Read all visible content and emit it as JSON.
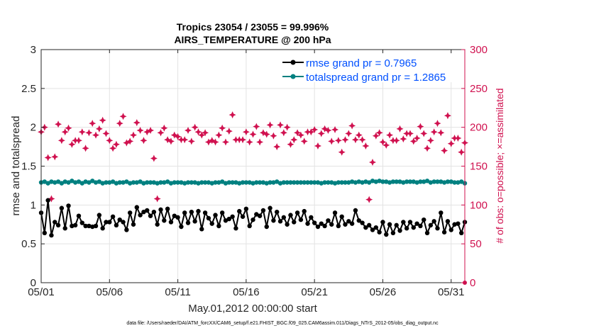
{
  "chart_data": {
    "type": "line",
    "title": "Tropics 23054 / 23055 = 99.996%",
    "subtitle": "AIRS_TEMPERATURE @ 200 hPa",
    "xlabel": "May.01,2012 00:00:00 start",
    "ylabel": "rmse and totalspread",
    "ylabel_right": "# of obs: o=possible; ×=assimilated",
    "x_tick_labels": [
      "05/01",
      "05/06",
      "05/11",
      "05/16",
      "05/21",
      "05/26",
      "05/31"
    ],
    "x_ticks": [
      0,
      5,
      10,
      15,
      20,
      25,
      30
    ],
    "xlim": [
      0,
      31
    ],
    "ylim": [
      0,
      3
    ],
    "y_ticks": [
      0,
      0.5,
      1,
      1.5,
      2,
      2.5,
      3
    ],
    "y_tick_labels": [
      "0",
      "0.5",
      "1",
      "1.5",
      "2",
      "2.5",
      "3"
    ],
    "ylim_right": [
      0,
      300
    ],
    "y_ticks_right": [
      0,
      50,
      100,
      150,
      200,
      250,
      300
    ],
    "y_tick_labels_right": [
      "0",
      "50",
      "100",
      "150",
      "200",
      "250",
      "300"
    ],
    "grid": true,
    "legend_position": "top-right",
    "series": [
      {
        "name": "rmse grand pr = 0.7965",
        "axis": "left",
        "color": "#000000",
        "x": [
          0.0,
          0.25,
          0.5,
          0.75,
          1.0,
          1.25,
          1.5,
          1.75,
          2.0,
          2.25,
          2.5,
          2.75,
          3.0,
          3.25,
          3.5,
          3.75,
          4.0,
          4.25,
          4.5,
          4.75,
          5.0,
          5.25,
          5.5,
          5.75,
          6.0,
          6.25,
          6.5,
          6.75,
          7.0,
          7.25,
          7.5,
          7.75,
          8.0,
          8.25,
          8.5,
          8.75,
          9.0,
          9.25,
          9.5,
          9.75,
          10.0,
          10.25,
          10.5,
          10.75,
          11.0,
          11.25,
          11.5,
          11.75,
          12.0,
          12.25,
          12.5,
          12.75,
          13.0,
          13.25,
          13.5,
          13.75,
          14.0,
          14.25,
          14.5,
          14.75,
          15.0,
          15.25,
          15.5,
          15.75,
          16.0,
          16.25,
          16.5,
          16.75,
          17.0,
          17.25,
          17.5,
          17.75,
          18.0,
          18.25,
          18.5,
          18.75,
          19.0,
          19.25,
          19.5,
          19.75,
          20.0,
          20.25,
          20.5,
          20.75,
          21.0,
          21.25,
          21.5,
          21.75,
          22.0,
          22.25,
          22.5,
          22.75,
          23.0,
          23.25,
          23.5,
          23.75,
          24.0,
          24.25,
          24.5,
          24.75,
          25.0,
          25.25,
          25.5,
          25.75,
          26.0,
          26.25,
          26.5,
          26.75,
          27.0,
          27.25,
          27.5,
          27.75,
          28.0,
          28.25,
          28.5,
          28.75,
          29.0,
          29.25,
          29.5,
          29.75,
          30.0,
          30.25,
          30.5,
          30.75,
          31.0
        ],
        "values": [
          0.9,
          0.64,
          1.06,
          0.61,
          0.78,
          0.74,
          0.96,
          0.7,
          0.99,
          0.73,
          0.74,
          0.86,
          0.77,
          0.73,
          0.73,
          0.72,
          0.73,
          0.87,
          0.7,
          0.78,
          0.78,
          0.85,
          0.74,
          0.81,
          0.78,
          0.68,
          0.9,
          0.75,
          0.97,
          0.87,
          0.91,
          0.93,
          0.86,
          0.91,
          0.75,
          0.94,
          0.8,
          0.95,
          0.78,
          0.86,
          0.84,
          0.72,
          0.9,
          0.77,
          0.91,
          0.79,
          0.92,
          0.69,
          0.9,
          0.83,
          0.76,
          0.87,
          0.73,
          0.9,
          0.8,
          0.82,
          0.85,
          0.7,
          0.92,
          0.85,
          0.95,
          0.73,
          0.81,
          0.88,
          0.86,
          0.93,
          0.72,
          0.96,
          0.8,
          0.91,
          0.79,
          0.84,
          0.75,
          0.87,
          0.78,
          0.9,
          0.81,
          0.92,
          0.76,
          0.84,
          0.77,
          0.72,
          0.76,
          0.73,
          0.8,
          0.75,
          0.9,
          0.73,
          0.85,
          0.75,
          0.79,
          0.76,
          0.93,
          0.8,
          0.77,
          0.71,
          0.74,
          0.68,
          0.71,
          0.65,
          0.78,
          0.62,
          0.75,
          0.64,
          0.74,
          0.67,
          0.78,
          0.7,
          0.78,
          0.71,
          0.76,
          0.73,
          0.81,
          0.64,
          0.74,
          0.79,
          0.7,
          0.9,
          0.65,
          0.79,
          0.68,
          0.75,
          0.76,
          0.64,
          0.78
        ]
      },
      {
        "name": "totalspread grand pr = 1.2865",
        "axis": "left",
        "color": "#008080",
        "x": [
          0.0,
          0.25,
          0.5,
          0.75,
          1.0,
          1.25,
          1.5,
          1.75,
          2.0,
          2.25,
          2.5,
          2.75,
          3.0,
          3.25,
          3.5,
          3.75,
          4.0,
          4.25,
          4.5,
          4.75,
          5.0,
          5.25,
          5.5,
          5.75,
          6.0,
          6.25,
          6.5,
          6.75,
          7.0,
          7.25,
          7.5,
          7.75,
          8.0,
          8.25,
          8.5,
          8.75,
          9.0,
          9.25,
          9.5,
          9.75,
          10.0,
          10.25,
          10.5,
          10.75,
          11.0,
          11.25,
          11.5,
          11.75,
          12.0,
          12.25,
          12.5,
          12.75,
          13.0,
          13.25,
          13.5,
          13.75,
          14.0,
          14.25,
          14.5,
          14.75,
          15.0,
          15.25,
          15.5,
          15.75,
          16.0,
          16.25,
          16.5,
          16.75,
          17.0,
          17.25,
          17.5,
          17.75,
          18.0,
          18.25,
          18.5,
          18.75,
          19.0,
          19.25,
          19.5,
          19.75,
          20.0,
          20.25,
          20.5,
          20.75,
          21.0,
          21.25,
          21.5,
          21.75,
          22.0,
          22.25,
          22.5,
          22.75,
          23.0,
          23.25,
          23.5,
          23.75,
          24.0,
          24.25,
          24.5,
          24.75,
          25.0,
          25.25,
          25.5,
          25.75,
          26.0,
          26.25,
          26.5,
          26.75,
          27.0,
          27.25,
          27.5,
          27.75,
          28.0,
          28.25,
          28.5,
          28.75,
          29.0,
          29.25,
          29.5,
          29.75,
          30.0,
          30.25,
          30.5,
          30.75,
          31.0
        ],
        "values": [
          1.29,
          1.3,
          1.28,
          1.3,
          1.29,
          1.3,
          1.28,
          1.3,
          1.29,
          1.31,
          1.29,
          1.3,
          1.28,
          1.3,
          1.29,
          1.31,
          1.29,
          1.3,
          1.28,
          1.29,
          1.29,
          1.3,
          1.28,
          1.29,
          1.29,
          1.3,
          1.28,
          1.29,
          1.29,
          1.3,
          1.28,
          1.29,
          1.29,
          1.29,
          1.28,
          1.29,
          1.29,
          1.3,
          1.28,
          1.29,
          1.29,
          1.29,
          1.28,
          1.29,
          1.29,
          1.29,
          1.28,
          1.29,
          1.29,
          1.29,
          1.28,
          1.29,
          1.29,
          1.3,
          1.28,
          1.29,
          1.29,
          1.29,
          1.28,
          1.29,
          1.29,
          1.29,
          1.28,
          1.29,
          1.29,
          1.29,
          1.28,
          1.29,
          1.29,
          1.3,
          1.28,
          1.29,
          1.29,
          1.29,
          1.29,
          1.29,
          1.29,
          1.29,
          1.29,
          1.29,
          1.29,
          1.29,
          1.28,
          1.29,
          1.29,
          1.29,
          1.28,
          1.29,
          1.29,
          1.29,
          1.29,
          1.3,
          1.29,
          1.3,
          1.29,
          1.3,
          1.29,
          1.31,
          1.3,
          1.31,
          1.3,
          1.3,
          1.29,
          1.3,
          1.3,
          1.3,
          1.29,
          1.3,
          1.3,
          1.3,
          1.29,
          1.3,
          1.3,
          1.31,
          1.29,
          1.3,
          1.3,
          1.3,
          1.29,
          1.3,
          1.3,
          1.29,
          1.29,
          1.3,
          1.28
        ]
      },
      {
        "name": "# obs possible / assimilated",
        "axis": "right",
        "color": "#d0114f",
        "marker": "star",
        "x": [
          0.0,
          0.25,
          0.5,
          0.75,
          1.0,
          1.25,
          1.5,
          1.75,
          2.0,
          2.25,
          2.5,
          2.75,
          3.0,
          3.25,
          3.5,
          3.75,
          4.0,
          4.25,
          4.5,
          4.75,
          5.0,
          5.25,
          5.5,
          5.75,
          6.0,
          6.25,
          6.5,
          6.75,
          7.0,
          7.25,
          7.5,
          7.75,
          8.0,
          8.25,
          8.5,
          8.75,
          9.0,
          9.25,
          9.5,
          9.75,
          10.0,
          10.25,
          10.5,
          10.75,
          11.0,
          11.25,
          11.5,
          11.75,
          12.0,
          12.25,
          12.5,
          12.75,
          13.0,
          13.25,
          13.5,
          13.75,
          14.0,
          14.25,
          14.5,
          14.75,
          15.0,
          15.25,
          15.5,
          15.75,
          16.0,
          16.25,
          16.5,
          16.75,
          17.0,
          17.25,
          17.5,
          17.75,
          18.0,
          18.25,
          18.5,
          18.75,
          19.0,
          19.25,
          19.5,
          19.75,
          20.0,
          20.25,
          20.5,
          20.75,
          21.0,
          21.25,
          21.5,
          21.75,
          22.0,
          22.25,
          22.5,
          22.75,
          23.0,
          23.25,
          23.5,
          23.75,
          24.0,
          24.25,
          24.5,
          24.75,
          25.0,
          25.25,
          25.5,
          25.75,
          26.0,
          26.25,
          26.5,
          26.75,
          27.0,
          27.25,
          27.5,
          27.75,
          28.0,
          28.25,
          28.5,
          28.75,
          29.0,
          29.25,
          29.5,
          29.75,
          30.0,
          30.25,
          30.5,
          30.75,
          31.0
        ],
        "values": [
          194,
          200,
          161,
          108,
          162,
          204,
          183,
          194,
          199,
          178,
          183,
          183,
          194,
          173,
          193,
          205,
          190,
          198,
          209,
          192,
          183,
          173,
          178,
          205,
          214,
          180,
          182,
          190,
          206,
          196,
          183,
          194,
          196,
          160,
          108,
          193,
          199,
          184,
          182,
          190,
          188,
          184,
          184,
          196,
          182,
          200,
          194,
          190,
          193,
          181,
          183,
          181,
          190,
          199,
          181,
          195,
          216,
          184,
          184,
          184,
          194,
          181,
          191,
          201,
          181,
          193,
          191,
          203,
          189,
          175,
          203,
          193,
          200,
          178,
          184,
          193,
          190,
          182,
          194,
          194,
          197,
          176,
          192,
          198,
          196,
          182,
          197,
          183,
          168,
          184,
          192,
          202,
          184,
          190,
          184,
          176,
          107,
          155,
          189,
          193,
          181,
          177,
          190,
          183,
          183,
          198,
          185,
          192,
          192,
          182,
          186,
          201,
          192,
          173,
          183,
          194,
          205,
          193,
          170,
          215,
          179,
          186,
          186,
          168,
          180
        ]
      }
    ]
  },
  "legend": {
    "rmse_label": "rmse grand pr = 0.7965",
    "spread_label": "totalspread grand pr = 1.2865"
  },
  "footer": "data file: /Users/raeder/DAI/ATM_forcXX/CAM6_setup/f.e21.FHIST_BGC.f09_025.CAM6assim.011/Diags_NTrS_2012-05/obs_diag_output.nc"
}
